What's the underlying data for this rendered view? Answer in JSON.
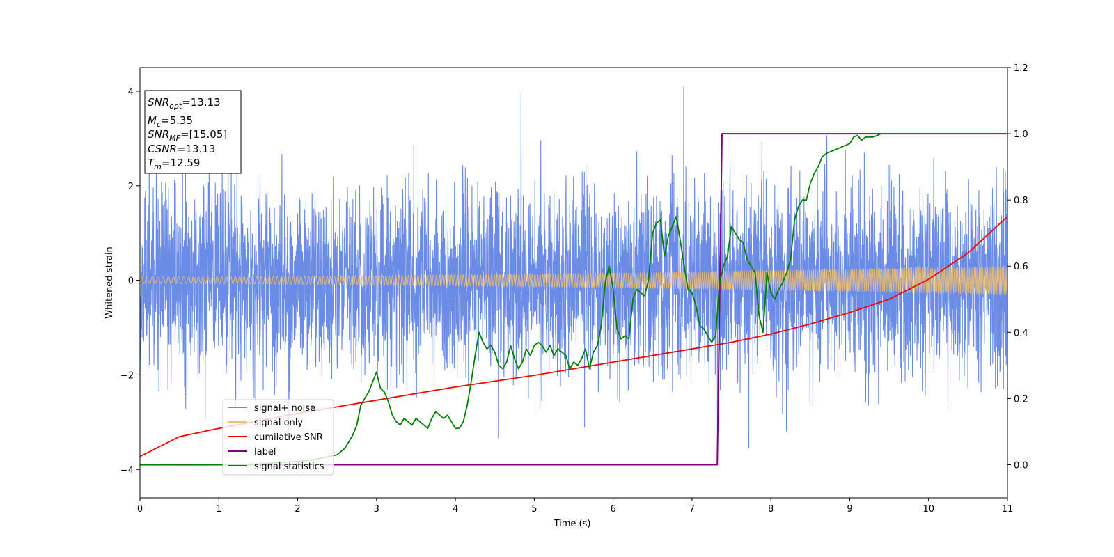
{
  "chart_data": {
    "type": "line",
    "title": "",
    "xlabel": "Time (s)",
    "ylabel": "Whitened strain",
    "xlim": [
      0,
      11
    ],
    "ylim": [
      -4.6,
      4.5
    ],
    "y2lim": [
      -0.1,
      1.2
    ],
    "xticks": [
      "0",
      "1",
      "2",
      "3",
      "4",
      "5",
      "6",
      "7",
      "8",
      "9",
      "10",
      "11"
    ],
    "yticks": [
      "4",
      "2",
      "0",
      "−2",
      "−4"
    ],
    "y2ticks": [
      "1.2",
      "1.0",
      "0.8",
      "0.6",
      "0.4",
      "0.2",
      "0.0"
    ],
    "grid": false,
    "legend_placement": "lower-left",
    "colors": {
      "signal_noise": "#6a8be6",
      "signal_only": "#f5c06b",
      "cumulative_snr": "#ff0000",
      "label": "#800080",
      "signal_statistics": "#008000"
    },
    "annotation": {
      "snr_opt": {
        "symbol": "SNR",
        "sub": "opt",
        "value": "=13.13"
      },
      "mc": {
        "symbol": "M",
        "sub": "c",
        "value": "=5.35"
      },
      "snr_mf": {
        "symbol": "SNR",
        "sub": "MF",
        "value": "=[15.05]"
      },
      "csnr": {
        "symbol": "CSNR",
        "value": "=13.13"
      },
      "tm": {
        "symbol": "T",
        "sub": "m",
        "value": "=12.59"
      }
    },
    "series": [
      {
        "name": "signal+ noise",
        "axis": "left",
        "noise_sigma": 1.0,
        "noise_range": [
          -4.1,
          4.1
        ]
      },
      {
        "name": "signal only",
        "axis": "left",
        "amplitude_start": 0.07,
        "amplitude_end": 0.31
      },
      {
        "name": "cumilative SNR",
        "axis": "right",
        "x": [
          0,
          0.5,
          1,
          2,
          3,
          4,
          5,
          6,
          7,
          7.5,
          8,
          8.5,
          9,
          9.5,
          10,
          10.5,
          11
        ],
        "y": [
          0.025,
          0.085,
          0.11,
          0.155,
          0.195,
          0.235,
          0.27,
          0.31,
          0.35,
          0.37,
          0.395,
          0.425,
          0.46,
          0.5,
          0.56,
          0.64,
          0.75
        ]
      },
      {
        "name": "label",
        "axis": "right",
        "x": [
          0,
          7.32,
          7.38,
          11
        ],
        "y": [
          0.0,
          0.0,
          1.0,
          1.0
        ]
      },
      {
        "name": "signal statistics",
        "axis": "right",
        "x": [
          0,
          0.5,
          1,
          1.5,
          2,
          2.2,
          2.4,
          2.5,
          2.6,
          2.65,
          2.7,
          2.75,
          2.8,
          2.85,
          2.9,
          2.95,
          3.0,
          3.05,
          3.1,
          3.15,
          3.2,
          3.25,
          3.3,
          3.35,
          3.4,
          3.45,
          3.5,
          3.55,
          3.6,
          3.65,
          3.7,
          3.75,
          3.8,
          3.85,
          3.9,
          3.95,
          4.0,
          4.05,
          4.1,
          4.15,
          4.2,
          4.25,
          4.3,
          4.35,
          4.4,
          4.45,
          4.5,
          4.55,
          4.6,
          4.65,
          4.7,
          4.75,
          4.8,
          4.85,
          4.9,
          4.95,
          5.0,
          5.05,
          5.1,
          5.15,
          5.2,
          5.25,
          5.3,
          5.35,
          5.4,
          5.45,
          5.5,
          5.55,
          5.6,
          5.65,
          5.7,
          5.75,
          5.8,
          5.85,
          5.9,
          5.95,
          6.0,
          6.05,
          6.1,
          6.15,
          6.2,
          6.25,
          6.3,
          6.35,
          6.4,
          6.45,
          6.5,
          6.55,
          6.6,
          6.65,
          6.7,
          6.75,
          6.8,
          6.85,
          6.9,
          6.95,
          7.0,
          7.05,
          7.1,
          7.15,
          7.2,
          7.25,
          7.3,
          7.35,
          7.4,
          7.45,
          7.5,
          7.55,
          7.6,
          7.65,
          7.7,
          7.75,
          7.8,
          7.85,
          7.9,
          7.95,
          8.0,
          8.05,
          8.1,
          8.15,
          8.2,
          8.25,
          8.3,
          8.35,
          8.4,
          8.45,
          8.5,
          8.55,
          8.6,
          8.65,
          8.7,
          8.8,
          8.9,
          9.0,
          9.05,
          9.1,
          9.15,
          9.2,
          9.3,
          9.4,
          9.5,
          9.7,
          10.0,
          10.5,
          11.0
        ],
        "y": [
          0.0,
          0.001,
          0.0,
          0.002,
          0.01,
          0.015,
          0.025,
          0.03,
          0.05,
          0.07,
          0.09,
          0.12,
          0.18,
          0.2,
          0.22,
          0.25,
          0.28,
          0.23,
          0.22,
          0.19,
          0.15,
          0.13,
          0.12,
          0.14,
          0.13,
          0.12,
          0.14,
          0.13,
          0.12,
          0.11,
          0.14,
          0.16,
          0.15,
          0.14,
          0.15,
          0.13,
          0.11,
          0.11,
          0.13,
          0.18,
          0.25,
          0.33,
          0.4,
          0.37,
          0.35,
          0.36,
          0.34,
          0.3,
          0.29,
          0.31,
          0.36,
          0.32,
          0.29,
          0.31,
          0.35,
          0.33,
          0.36,
          0.37,
          0.36,
          0.34,
          0.36,
          0.33,
          0.35,
          0.34,
          0.33,
          0.29,
          0.31,
          0.3,
          0.32,
          0.35,
          0.29,
          0.34,
          0.36,
          0.42,
          0.55,
          0.6,
          0.53,
          0.41,
          0.38,
          0.39,
          0.38,
          0.5,
          0.53,
          0.52,
          0.51,
          0.56,
          0.7,
          0.73,
          0.74,
          0.63,
          0.69,
          0.72,
          0.75,
          0.68,
          0.6,
          0.53,
          0.52,
          0.48,
          0.42,
          0.41,
          0.39,
          0.37,
          0.39,
          0.55,
          0.6,
          0.63,
          0.72,
          0.7,
          0.68,
          0.67,
          0.62,
          0.6,
          0.58,
          0.45,
          0.4,
          0.58,
          0.52,
          0.5,
          0.53,
          0.55,
          0.58,
          0.62,
          0.74,
          0.78,
          0.8,
          0.8,
          0.85,
          0.88,
          0.9,
          0.93,
          0.94,
          0.95,
          0.96,
          0.97,
          0.99,
          0.995,
          0.98,
          0.99,
          0.99,
          1.0,
          1.0,
          1.0,
          1.0,
          1.0,
          1.0
        ]
      }
    ]
  }
}
